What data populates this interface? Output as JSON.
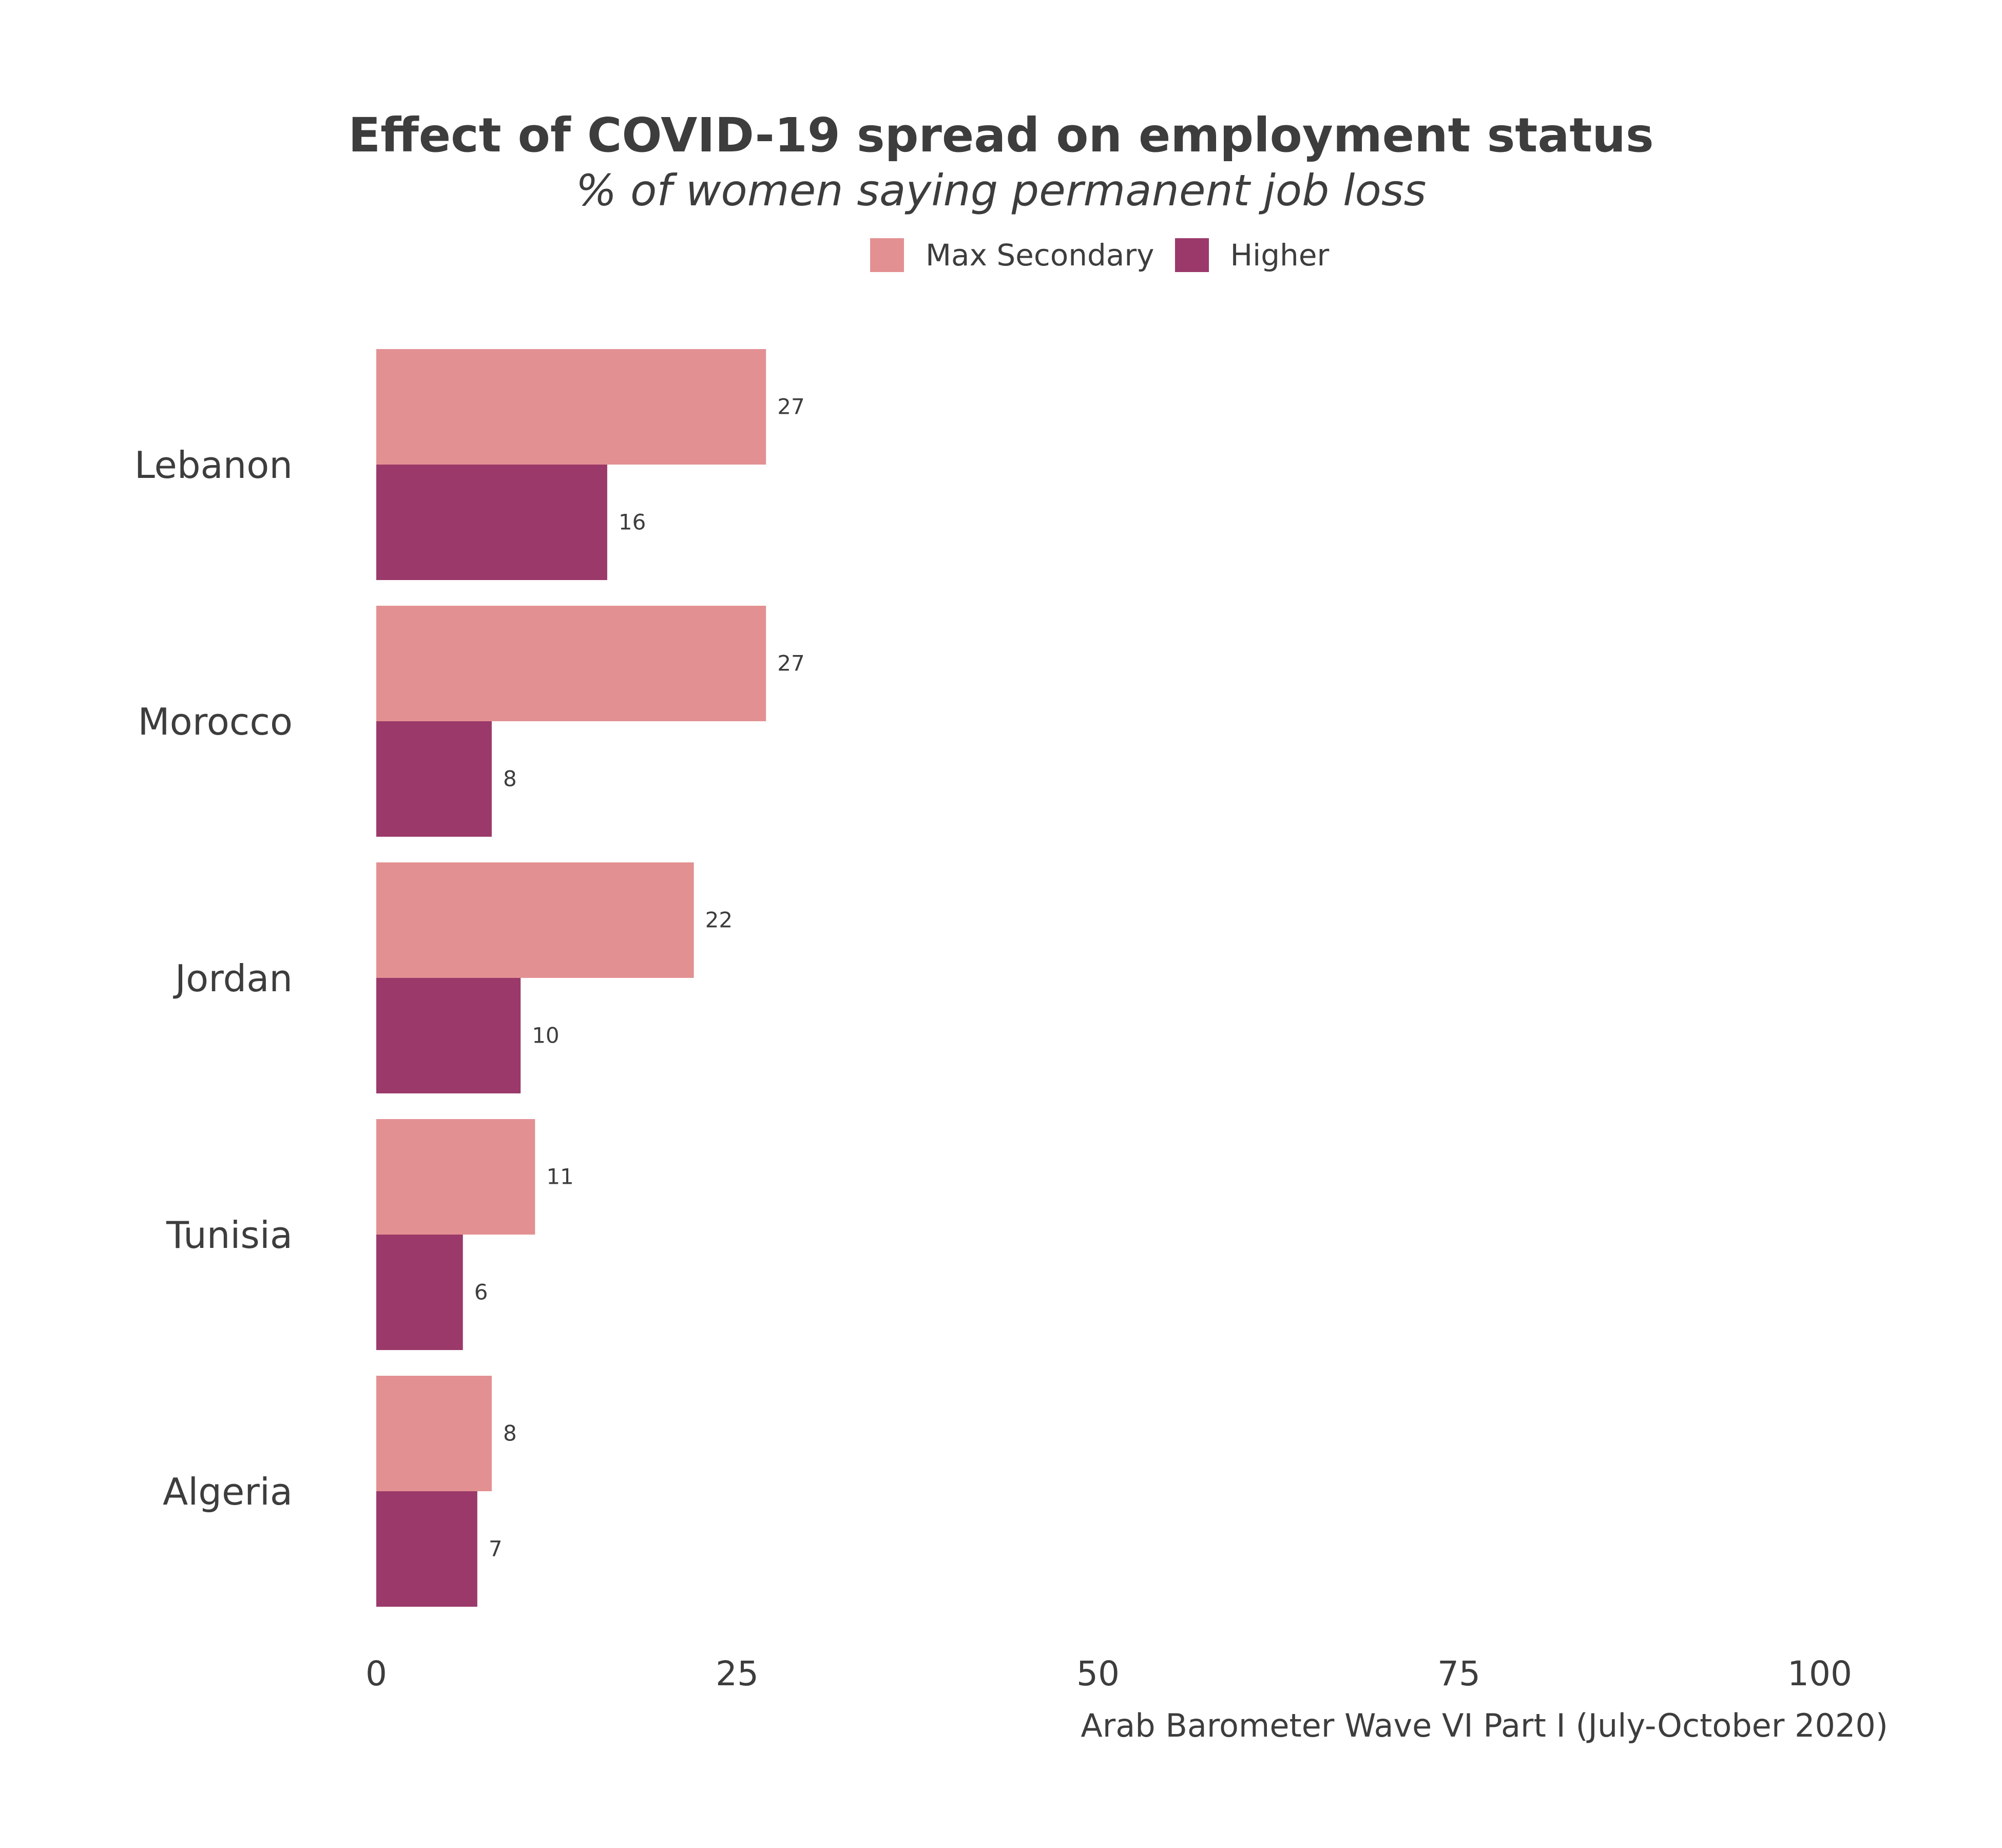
{
  "chart_data": {
    "type": "bar",
    "orientation": "horizontal",
    "title": "Effect of COVID-19 spread on employment status",
    "subtitle": "% of women saying permanent job loss",
    "caption": "Arab Barometer Wave VI Part I (July-October 2020)",
    "xlabel": "",
    "ylabel": "",
    "categories": [
      "Lebanon",
      "Morocco",
      "Jordan",
      "Tunisia",
      "Algeria"
    ],
    "series": [
      {
        "name": "Max Secondary",
        "color": "#e39092",
        "values": [
          27,
          27,
          22,
          11,
          8
        ]
      },
      {
        "name": "Higher",
        "color": "#9b3a6a",
        "values": [
          16,
          8,
          10,
          6,
          7
        ]
      }
    ],
    "xlim": [
      0,
      100
    ],
    "xticks": [
      0,
      25,
      50,
      75,
      100
    ],
    "grid": false,
    "legend_position": "top"
  }
}
